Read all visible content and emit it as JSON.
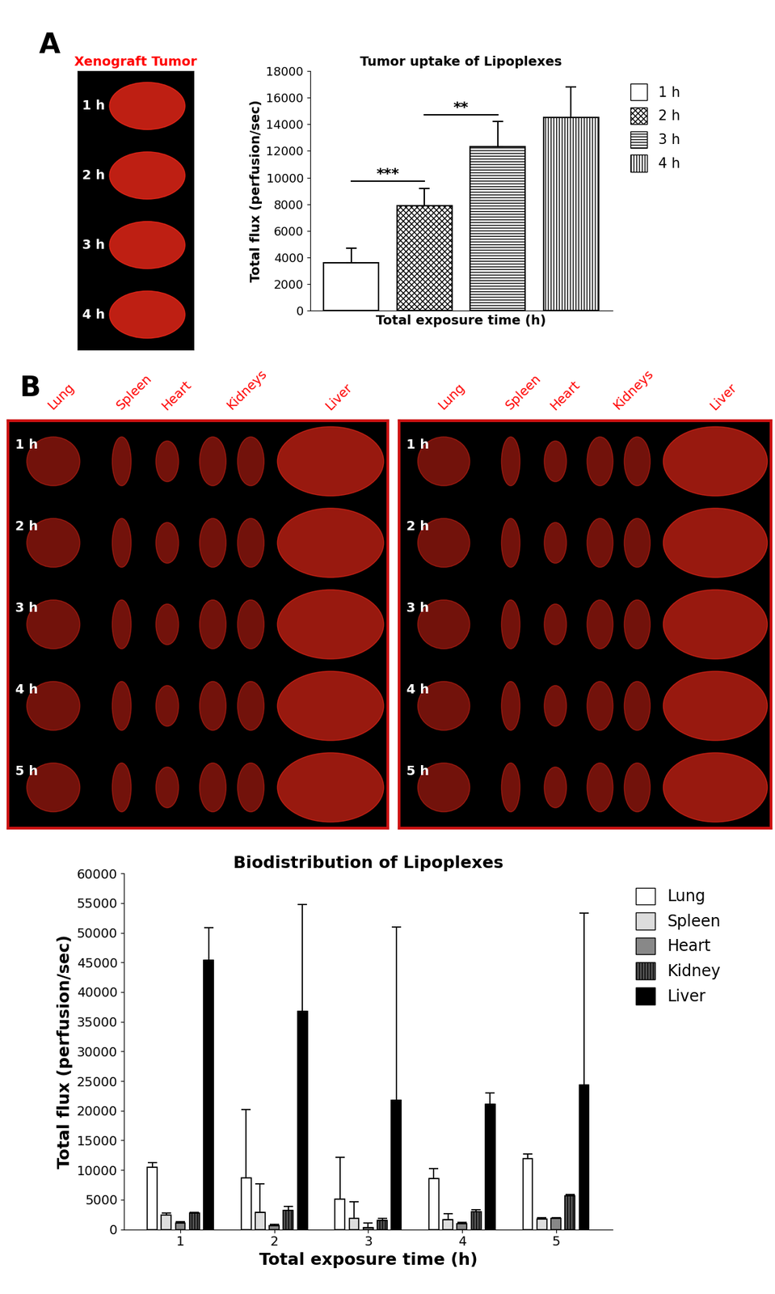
{
  "panel_labels": [
    "A",
    "B"
  ],
  "tumor_image": {
    "title": "Xenograft Tumor",
    "rows": [
      "1 h",
      "2 h",
      "3 h",
      "4 h"
    ]
  },
  "organ_images": [
    {
      "columns": [
        "Lung",
        "Spleen",
        "Heart",
        "Kidneys",
        "Liver"
      ],
      "rows": [
        "1 h",
        "2 h",
        "3 h",
        "4 h",
        "5 h"
      ]
    },
    {
      "columns": [
        "Lung",
        "Spleen",
        "Heart",
        "Kidneys",
        "Liver"
      ],
      "rows": [
        "1 h",
        "2 h",
        "3 h",
        "4 h",
        "5 h"
      ]
    }
  ],
  "chart_data": [
    {
      "type": "bar",
      "title": "Tumor uptake of Lipoplexes",
      "x_label": "Total exposure time (h)",
      "y_label": "Total flux (perfusion/sec)",
      "categories": [
        null
      ],
      "series": [
        {
          "name": "1 h",
          "color": "#ffffff",
          "values": [
            3600
          ],
          "errors": [
            1100
          ]
        },
        {
          "name": "2 h",
          "color": "#ffffff",
          "values": [
            7900
          ],
          "errors": [
            1300
          ]
        },
        {
          "name": "3 h",
          "color": "#ffffff",
          "values": [
            12300
          ],
          "errors": [
            1900
          ]
        },
        {
          "name": "4 h",
          "color": "#ffffff",
          "values": [
            14500
          ],
          "errors": [
            2300
          ]
        }
      ],
      "ylim": [
        0,
        18000
      ],
      "yticks": [
        0,
        2000,
        4000,
        6000,
        8000,
        10000,
        12000,
        14000,
        16000,
        18000
      ],
      "tick_labels": "y",
      "legend": "right",
      "annotations": [
        {
          "text": "***",
          "from": "1 h",
          "to": "2 h"
        },
        {
          "text": "**",
          "from": "2 h",
          "to": "3 h"
        }
      ]
    },
    {
      "type": "bar",
      "title": "Biodistribution of Lipoplexes",
      "x_label": "Total exposure time (h)",
      "y_label": "Total flux (perfusion/sec)",
      "categories": [
        "1",
        "2",
        "3",
        "4",
        "5"
      ],
      "series": [
        {
          "name": "Lung",
          "color": "#ffffff",
          "values": [
            10500,
            8700,
            5100,
            8600,
            11900
          ],
          "errors": [
            700,
            11500,
            7000,
            1600,
            800
          ]
        },
        {
          "name": "Spleen",
          "color": "#dddddd",
          "values": [
            2400,
            2900,
            1900,
            1600,
            1700
          ],
          "errors": [
            300,
            4800,
            2700,
            1000,
            300
          ]
        },
        {
          "name": "Heart",
          "color": "#888888",
          "values": [
            1100,
            600,
            300,
            1000,
            1800
          ],
          "errors": [
            200,
            200,
            800,
            200,
            200
          ]
        },
        {
          "name": "Kidney",
          "color": "#555555",
          "values": [
            2700,
            3200,
            1500,
            3000,
            5600
          ],
          "errors": [
            200,
            700,
            400,
            300,
            300
          ]
        },
        {
          "name": "Liver",
          "color": "#000000",
          "values": [
            45400,
            36800,
            21800,
            21100,
            24300
          ],
          "errors": [
            5500,
            18000,
            29200,
            1900,
            29000
          ]
        }
      ],
      "ylim": [
        0,
        60000
      ],
      "yticks": [
        0,
        5000,
        10000,
        15000,
        20000,
        25000,
        30000,
        35000,
        40000,
        45000,
        50000,
        55000,
        60000
      ],
      "legend": "right"
    }
  ]
}
